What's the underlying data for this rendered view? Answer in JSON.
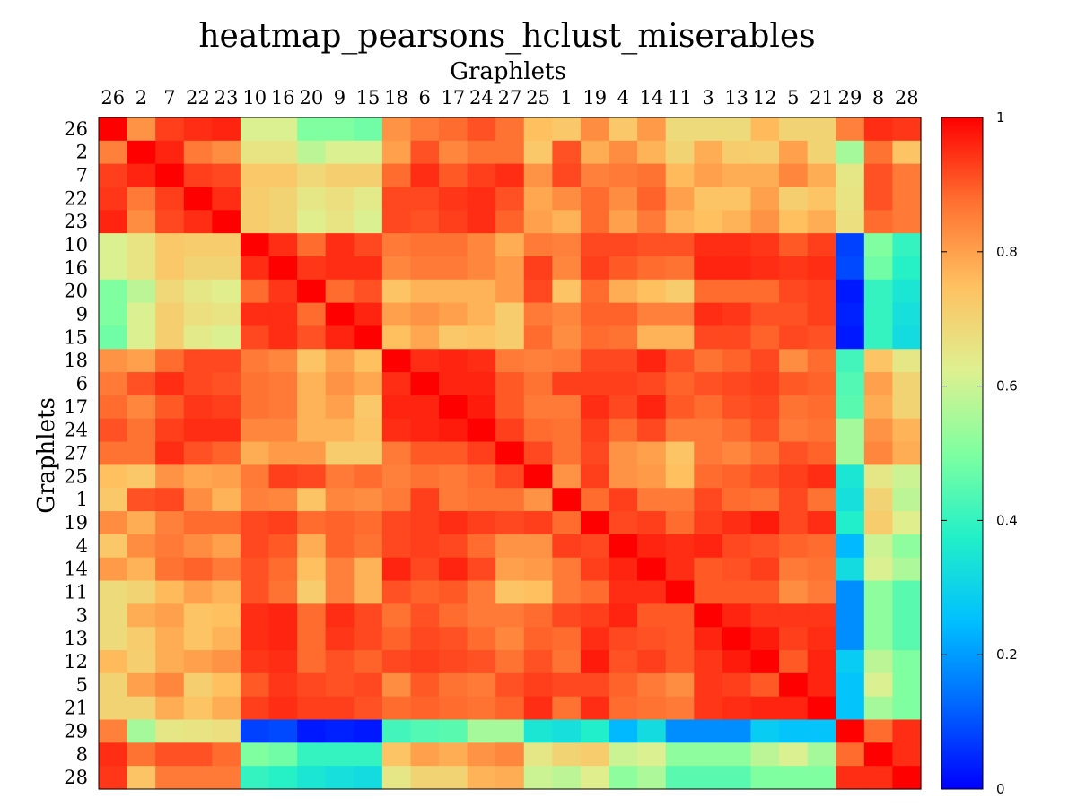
{
  "chart_data": {
    "type": "heatmap",
    "title": "heatmap_pearsons_hclust_miserables",
    "xlabel": "Graphlets",
    "ylabel": "Graphlets",
    "labels": [
      "26",
      "2",
      "7",
      "22",
      "23",
      "10",
      "16",
      "20",
      "9",
      "15",
      "18",
      "6",
      "17",
      "24",
      "27",
      "25",
      "1",
      "19",
      "4",
      "14",
      "11",
      "3",
      "13",
      "12",
      "5",
      "21",
      "29",
      "8",
      "28"
    ],
    "colorbar": {
      "min": 0,
      "max": 1,
      "ticks": [
        "0",
        "0.2",
        "0.4",
        "0.6",
        "0.8",
        "1"
      ],
      "colormap": "jet"
    },
    "values": [
      [
        1.0,
        0.82,
        0.93,
        0.95,
        0.96,
        0.62,
        0.62,
        0.5,
        0.5,
        0.48,
        0.82,
        0.86,
        0.88,
        0.91,
        0.87,
        0.75,
        0.73,
        0.83,
        0.73,
        0.81,
        0.68,
        0.68,
        0.68,
        0.76,
        0.7,
        0.7,
        0.85,
        0.95,
        0.94
      ],
      [
        0.85,
        1.0,
        0.96,
        0.86,
        0.83,
        0.66,
        0.66,
        0.58,
        0.62,
        0.62,
        0.8,
        0.91,
        0.84,
        0.87,
        0.87,
        0.73,
        0.91,
        0.78,
        0.83,
        0.77,
        0.7,
        0.78,
        0.72,
        0.71,
        0.8,
        0.7,
        0.55,
        0.87,
        0.74
      ],
      [
        0.93,
        0.96,
        1.0,
        0.93,
        0.92,
        0.73,
        0.73,
        0.69,
        0.71,
        0.71,
        0.88,
        0.95,
        0.9,
        0.93,
        0.95,
        0.82,
        0.92,
        0.85,
        0.86,
        0.87,
        0.76,
        0.8,
        0.78,
        0.78,
        0.84,
        0.78,
        0.65,
        0.91,
        0.86
      ],
      [
        0.94,
        0.86,
        0.93,
        1.0,
        0.95,
        0.72,
        0.7,
        0.65,
        0.67,
        0.64,
        0.92,
        0.92,
        0.94,
        0.95,
        0.91,
        0.79,
        0.83,
        0.88,
        0.83,
        0.89,
        0.8,
        0.74,
        0.74,
        0.8,
        0.71,
        0.74,
        0.66,
        0.91,
        0.86
      ],
      [
        0.96,
        0.83,
        0.92,
        0.95,
        1.0,
        0.72,
        0.7,
        0.63,
        0.66,
        0.62,
        0.92,
        0.91,
        0.93,
        0.95,
        0.89,
        0.8,
        0.77,
        0.88,
        0.8,
        0.86,
        0.77,
        0.75,
        0.77,
        0.82,
        0.75,
        0.78,
        0.67,
        0.88,
        0.86
      ],
      [
        0.62,
        0.66,
        0.73,
        0.72,
        0.72,
        1.0,
        0.95,
        0.88,
        0.95,
        0.92,
        0.86,
        0.87,
        0.87,
        0.84,
        0.78,
        0.86,
        0.85,
        0.92,
        0.92,
        0.91,
        0.91,
        0.95,
        0.95,
        0.94,
        0.9,
        0.93,
        0.08,
        0.5,
        0.4
      ],
      [
        0.62,
        0.66,
        0.73,
        0.7,
        0.7,
        0.95,
        1.0,
        0.94,
        0.95,
        0.95,
        0.84,
        0.86,
        0.86,
        0.84,
        0.81,
        0.93,
        0.84,
        0.93,
        0.9,
        0.88,
        0.87,
        0.96,
        0.96,
        0.95,
        0.94,
        0.95,
        0.09,
        0.48,
        0.38
      ],
      [
        0.5,
        0.58,
        0.69,
        0.65,
        0.63,
        0.88,
        0.94,
        1.0,
        0.88,
        0.91,
        0.74,
        0.77,
        0.77,
        0.77,
        0.81,
        0.92,
        0.74,
        0.88,
        0.78,
        0.75,
        0.72,
        0.88,
        0.88,
        0.88,
        0.92,
        0.93,
        0.03,
        0.4,
        0.35
      ],
      [
        0.5,
        0.62,
        0.71,
        0.67,
        0.66,
        0.95,
        0.95,
        0.88,
        1.0,
        0.96,
        0.8,
        0.82,
        0.8,
        0.77,
        0.72,
        0.86,
        0.84,
        0.89,
        0.89,
        0.85,
        0.85,
        0.95,
        0.94,
        0.91,
        0.91,
        0.93,
        0.04,
        0.4,
        0.33
      ],
      [
        0.48,
        0.62,
        0.71,
        0.64,
        0.62,
        0.92,
        0.95,
        0.91,
        0.96,
        1.0,
        0.75,
        0.79,
        0.73,
        0.74,
        0.72,
        0.88,
        0.83,
        0.88,
        0.87,
        0.77,
        0.77,
        0.92,
        0.92,
        0.89,
        0.92,
        0.91,
        0.03,
        0.4,
        0.32
      ],
      [
        0.82,
        0.8,
        0.88,
        0.92,
        0.92,
        0.86,
        0.84,
        0.74,
        0.8,
        0.75,
        1.0,
        0.95,
        0.96,
        0.95,
        0.86,
        0.85,
        0.86,
        0.92,
        0.92,
        0.96,
        0.91,
        0.87,
        0.89,
        0.92,
        0.83,
        0.88,
        0.42,
        0.74,
        0.65
      ],
      [
        0.86,
        0.91,
        0.95,
        0.92,
        0.91,
        0.87,
        0.86,
        0.77,
        0.82,
        0.79,
        0.95,
        1.0,
        0.96,
        0.96,
        0.9,
        0.87,
        0.93,
        0.93,
        0.93,
        0.92,
        0.89,
        0.91,
        0.92,
        0.93,
        0.9,
        0.89,
        0.44,
        0.8,
        0.7
      ],
      [
        0.88,
        0.84,
        0.9,
        0.94,
        0.93,
        0.87,
        0.86,
        0.77,
        0.8,
        0.73,
        0.96,
        0.96,
        1.0,
        0.97,
        0.9,
        0.86,
        0.86,
        0.95,
        0.92,
        0.96,
        0.9,
        0.88,
        0.91,
        0.92,
        0.87,
        0.88,
        0.45,
        0.78,
        0.7
      ],
      [
        0.91,
        0.87,
        0.93,
        0.95,
        0.95,
        0.84,
        0.84,
        0.77,
        0.77,
        0.74,
        0.95,
        0.96,
        0.97,
        1.0,
        0.93,
        0.88,
        0.87,
        0.93,
        0.88,
        0.92,
        0.86,
        0.86,
        0.88,
        0.91,
        0.86,
        0.87,
        0.55,
        0.82,
        0.77
      ],
      [
        0.87,
        0.87,
        0.95,
        0.91,
        0.89,
        0.78,
        0.81,
        0.81,
        0.72,
        0.72,
        0.86,
        0.9,
        0.9,
        0.93,
        1.0,
        0.92,
        0.87,
        0.92,
        0.82,
        0.8,
        0.74,
        0.86,
        0.84,
        0.87,
        0.91,
        0.89,
        0.55,
        0.84,
        0.78
      ],
      [
        0.75,
        0.73,
        0.82,
        0.79,
        0.8,
        0.86,
        0.93,
        0.92,
        0.86,
        0.88,
        0.85,
        0.87,
        0.86,
        0.88,
        0.92,
        1.0,
        0.82,
        0.93,
        0.82,
        0.81,
        0.75,
        0.88,
        0.89,
        0.91,
        0.93,
        0.95,
        0.35,
        0.65,
        0.6
      ],
      [
        0.73,
        0.91,
        0.92,
        0.83,
        0.77,
        0.85,
        0.84,
        0.74,
        0.84,
        0.83,
        0.86,
        0.93,
        0.86,
        0.87,
        0.87,
        0.82,
        1.0,
        0.88,
        0.93,
        0.86,
        0.86,
        0.92,
        0.88,
        0.87,
        0.92,
        0.87,
        0.33,
        0.7,
        0.58
      ],
      [
        0.83,
        0.78,
        0.85,
        0.88,
        0.88,
        0.92,
        0.93,
        0.88,
        0.89,
        0.88,
        0.92,
        0.93,
        0.95,
        0.93,
        0.92,
        0.93,
        0.88,
        1.0,
        0.92,
        0.93,
        0.88,
        0.93,
        0.95,
        0.97,
        0.92,
        0.95,
        0.37,
        0.72,
        0.63
      ],
      [
        0.73,
        0.83,
        0.86,
        0.83,
        0.8,
        0.92,
        0.9,
        0.78,
        0.89,
        0.87,
        0.92,
        0.93,
        0.92,
        0.88,
        0.82,
        0.82,
        0.93,
        0.92,
        1.0,
        0.96,
        0.95,
        0.96,
        0.92,
        0.91,
        0.89,
        0.88,
        0.24,
        0.6,
        0.52
      ],
      [
        0.81,
        0.77,
        0.87,
        0.89,
        0.86,
        0.91,
        0.88,
        0.75,
        0.85,
        0.77,
        0.96,
        0.92,
        0.96,
        0.92,
        0.8,
        0.81,
        0.86,
        0.93,
        0.96,
        1.0,
        0.95,
        0.9,
        0.91,
        0.93,
        0.86,
        0.87,
        0.32,
        0.62,
        0.56
      ],
      [
        0.68,
        0.7,
        0.76,
        0.8,
        0.77,
        0.91,
        0.87,
        0.72,
        0.85,
        0.77,
        0.91,
        0.89,
        0.9,
        0.86,
        0.74,
        0.75,
        0.86,
        0.88,
        0.95,
        0.95,
        1.0,
        0.9,
        0.9,
        0.9,
        0.83,
        0.86,
        0.18,
        0.52,
        0.45
      ],
      [
        0.68,
        0.78,
        0.8,
        0.74,
        0.75,
        0.95,
        0.96,
        0.88,
        0.95,
        0.92,
        0.87,
        0.91,
        0.88,
        0.86,
        0.86,
        0.88,
        0.92,
        0.93,
        0.96,
        0.9,
        0.9,
        1.0,
        0.96,
        0.94,
        0.94,
        0.94,
        0.18,
        0.52,
        0.45
      ],
      [
        0.68,
        0.72,
        0.78,
        0.74,
        0.77,
        0.95,
        0.96,
        0.88,
        0.94,
        0.92,
        0.89,
        0.92,
        0.91,
        0.88,
        0.84,
        0.89,
        0.88,
        0.95,
        0.92,
        0.91,
        0.9,
        0.96,
        1.0,
        0.97,
        0.93,
        0.95,
        0.18,
        0.52,
        0.45
      ],
      [
        0.76,
        0.71,
        0.78,
        0.8,
        0.82,
        0.94,
        0.95,
        0.88,
        0.91,
        0.89,
        0.92,
        0.93,
        0.92,
        0.91,
        0.87,
        0.91,
        0.87,
        0.97,
        0.91,
        0.93,
        0.9,
        0.94,
        0.97,
        1.0,
        0.9,
        0.96,
        0.28,
        0.58,
        0.5
      ],
      [
        0.7,
        0.8,
        0.84,
        0.71,
        0.75,
        0.9,
        0.94,
        0.92,
        0.91,
        0.92,
        0.83,
        0.9,
        0.87,
        0.86,
        0.91,
        0.93,
        0.92,
        0.92,
        0.89,
        0.86,
        0.83,
        0.94,
        0.93,
        0.9,
        1.0,
        0.96,
        0.26,
        0.62,
        0.5
      ],
      [
        0.7,
        0.7,
        0.78,
        0.74,
        0.78,
        0.93,
        0.95,
        0.93,
        0.93,
        0.91,
        0.88,
        0.89,
        0.88,
        0.87,
        0.89,
        0.95,
        0.87,
        0.95,
        0.88,
        0.87,
        0.86,
        0.94,
        0.95,
        0.96,
        0.96,
        1.0,
        0.26,
        0.55,
        0.5
      ],
      [
        0.85,
        0.55,
        0.65,
        0.66,
        0.67,
        0.08,
        0.09,
        0.03,
        0.04,
        0.03,
        0.42,
        0.44,
        0.45,
        0.55,
        0.55,
        0.35,
        0.33,
        0.37,
        0.24,
        0.32,
        0.18,
        0.18,
        0.18,
        0.28,
        0.26,
        0.26,
        1.0,
        0.88,
        0.95
      ],
      [
        0.95,
        0.87,
        0.91,
        0.91,
        0.88,
        0.5,
        0.48,
        0.4,
        0.4,
        0.4,
        0.74,
        0.8,
        0.78,
        0.82,
        0.84,
        0.65,
        0.7,
        0.72,
        0.6,
        0.62,
        0.52,
        0.52,
        0.52,
        0.58,
        0.62,
        0.55,
        0.88,
        1.0,
        0.95
      ],
      [
        0.94,
        0.74,
        0.86,
        0.86,
        0.86,
        0.4,
        0.38,
        0.35,
        0.33,
        0.32,
        0.65,
        0.7,
        0.7,
        0.77,
        0.78,
        0.6,
        0.58,
        0.63,
        0.52,
        0.56,
        0.45,
        0.45,
        0.45,
        0.5,
        0.5,
        0.5,
        0.95,
        0.95,
        1.0
      ]
    ]
  }
}
